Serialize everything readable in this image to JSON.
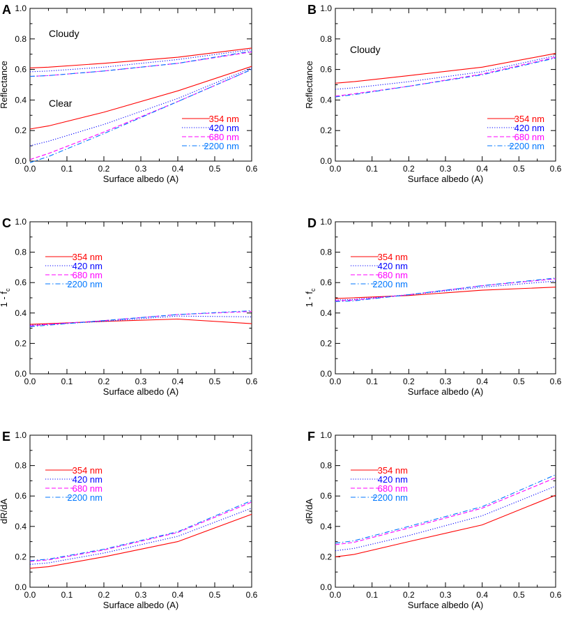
{
  "figure": {
    "legend": [
      {
        "label": "354 nm",
        "color": "#ff0000",
        "dash": "solid"
      },
      {
        "label": "420 nm",
        "color": "#0000ff",
        "dash": "dotted"
      },
      {
        "label": "680 nm",
        "color": "#ff00ff",
        "dash": "dashed"
      },
      {
        "label": "2200 nm",
        "color": "#0077ff",
        "dash": "dashdot"
      }
    ]
  },
  "chart_data": [
    {
      "panel": "A",
      "type": "line",
      "xlabel": "Surface albedo (A)",
      "ylabel": "Reflectance",
      "xlim": [
        0,
        0.6
      ],
      "ylim": [
        0,
        1.0
      ],
      "x_ticks": [
        "0.0",
        "0.1",
        "0.2",
        "0.3",
        "0.4",
        "0.5",
        "0.6"
      ],
      "y_ticks": [
        "0.0",
        "0.2",
        "0.4",
        "0.6",
        "0.8",
        "1.0"
      ],
      "x": [
        0.0,
        0.05,
        0.2,
        0.4,
        0.6
      ],
      "annotations": [
        "Cloudy",
        "Clear"
      ],
      "legend_position": "lower-right",
      "series": [
        {
          "name": "354 nm",
          "group": "Cloudy",
          "values": [
            0.61,
            0.615,
            0.64,
            0.68,
            0.74
          ]
        },
        {
          "name": "420 nm",
          "group": "Cloudy",
          "values": [
            0.585,
            0.59,
            0.615,
            0.665,
            0.73
          ]
        },
        {
          "name": "680 nm",
          "group": "Cloudy",
          "values": [
            0.555,
            0.56,
            0.59,
            0.64,
            0.715
          ]
        },
        {
          "name": "2200 nm",
          "group": "Cloudy",
          "values": [
            0.555,
            0.56,
            0.59,
            0.64,
            0.72
          ]
        },
        {
          "name": "354 nm",
          "group": "Clear",
          "values": [
            0.21,
            0.23,
            0.32,
            0.46,
            0.62
          ]
        },
        {
          "name": "420 nm",
          "group": "Clear",
          "values": [
            0.1,
            0.13,
            0.24,
            0.41,
            0.61
          ]
        },
        {
          "name": "680 nm",
          "group": "Clear",
          "values": [
            0.01,
            0.05,
            0.19,
            0.39,
            0.6
          ]
        },
        {
          "name": "2200 nm",
          "group": "Clear",
          "values": [
            -0.01,
            0.03,
            0.18,
            0.39,
            0.6
          ]
        }
      ]
    },
    {
      "panel": "B",
      "type": "line",
      "xlabel": "Surface albedo (A)",
      "ylabel": "Reflectance",
      "xlim": [
        0,
        0.6
      ],
      "ylim": [
        0,
        1.0
      ],
      "x_ticks": [
        "0.0",
        "0.1",
        "0.2",
        "0.3",
        "0.4",
        "0.5",
        "0.6"
      ],
      "y_ticks": [
        "0.0",
        "0.2",
        "0.4",
        "0.6",
        "0.8",
        "1.0"
      ],
      "x": [
        0.0,
        0.05,
        0.2,
        0.4,
        0.6
      ],
      "annotations": [
        "Cloudy"
      ],
      "legend_position": "lower-right",
      "series": [
        {
          "name": "354 nm",
          "values": [
            0.51,
            0.52,
            0.56,
            0.615,
            0.705
          ]
        },
        {
          "name": "420 nm",
          "values": [
            0.47,
            0.48,
            0.52,
            0.585,
            0.69
          ]
        },
        {
          "name": "680 nm",
          "values": [
            0.425,
            0.44,
            0.49,
            0.57,
            0.68
          ]
        },
        {
          "name": "2200 nm",
          "values": [
            0.42,
            0.435,
            0.49,
            0.565,
            0.675
          ]
        }
      ]
    },
    {
      "panel": "C",
      "type": "line",
      "xlabel": "Surface albedo (A)",
      "ylabel": "1 - fc",
      "xlim": [
        0,
        0.6
      ],
      "ylim": [
        0,
        1.0
      ],
      "x_ticks": [
        "0.0",
        "0.1",
        "0.2",
        "0.3",
        "0.4",
        "0.5",
        "0.6"
      ],
      "y_ticks": [
        "0.0",
        "0.2",
        "0.4",
        "0.6",
        "0.8",
        "1.0"
      ],
      "x": [
        0.0,
        0.05,
        0.2,
        0.4,
        0.6
      ],
      "legend_position": "top-left",
      "series": [
        {
          "name": "354 nm",
          "values": [
            0.325,
            0.33,
            0.345,
            0.36,
            0.33
          ]
        },
        {
          "name": "420 nm",
          "values": [
            0.32,
            0.325,
            0.345,
            0.38,
            0.375
          ]
        },
        {
          "name": "680 nm",
          "values": [
            0.315,
            0.325,
            0.35,
            0.39,
            0.41
          ]
        },
        {
          "name": "2200 nm",
          "values": [
            0.31,
            0.32,
            0.35,
            0.39,
            0.415
          ]
        }
      ]
    },
    {
      "panel": "D",
      "type": "line",
      "xlabel": "Surface albedo (A)",
      "ylabel": "1 - fc",
      "xlim": [
        0,
        0.6
      ],
      "ylim": [
        0,
        1.0
      ],
      "x_ticks": [
        "0.0",
        "0.1",
        "0.2",
        "0.3",
        "0.4",
        "0.5",
        "0.6"
      ],
      "y_ticks": [
        "0.0",
        "0.2",
        "0.4",
        "0.6",
        "0.8",
        "1.0"
      ],
      "x": [
        0.0,
        0.05,
        0.2,
        0.4,
        0.6
      ],
      "legend_position": "top-left",
      "series": [
        {
          "name": "354 nm",
          "values": [
            0.495,
            0.5,
            0.515,
            0.55,
            0.57
          ]
        },
        {
          "name": "420 nm",
          "values": [
            0.485,
            0.49,
            0.52,
            0.57,
            0.61
          ]
        },
        {
          "name": "680 nm",
          "values": [
            0.48,
            0.485,
            0.52,
            0.58,
            0.625
          ]
        },
        {
          "name": "2200 nm",
          "values": [
            0.475,
            0.48,
            0.52,
            0.58,
            0.63
          ]
        }
      ]
    },
    {
      "panel": "E",
      "type": "line",
      "xlabel": "Surface albedo (A)",
      "ylabel": "dR/dA",
      "xlim": [
        0,
        0.6
      ],
      "ylim": [
        0,
        1.0
      ],
      "x_ticks": [
        "0.0",
        "0.1",
        "0.2",
        "0.3",
        "0.4",
        "0.5",
        "0.6"
      ],
      "y_ticks": [
        "0.0",
        "0.2",
        "0.4",
        "0.6",
        "0.8",
        "1.0"
      ],
      "x": [
        0.0,
        0.05,
        0.2,
        0.4,
        0.6
      ],
      "legend_position": "top-left",
      "series": [
        {
          "name": "354 nm",
          "values": [
            0.125,
            0.135,
            0.2,
            0.3,
            0.48
          ]
        },
        {
          "name": "420 nm",
          "values": [
            0.15,
            0.16,
            0.225,
            0.335,
            0.52
          ]
        },
        {
          "name": "680 nm",
          "values": [
            0.17,
            0.18,
            0.245,
            0.36,
            0.56
          ]
        },
        {
          "name": "2200 nm",
          "values": [
            0.175,
            0.185,
            0.25,
            0.365,
            0.57
          ]
        }
      ]
    },
    {
      "panel": "F",
      "type": "line",
      "xlabel": "Surface albedo (A)",
      "ylabel": "dR/dA",
      "xlim": [
        0,
        0.6
      ],
      "ylim": [
        0,
        1.0
      ],
      "x_ticks": [
        "0.0",
        "0.1",
        "0.2",
        "0.3",
        "0.4",
        "0.5",
        "0.6"
      ],
      "y_ticks": [
        "0.0",
        "0.2",
        "0.4",
        "0.6",
        "0.8",
        "1.0"
      ],
      "x": [
        0.0,
        0.05,
        0.2,
        0.4,
        0.6
      ],
      "legend_position": "top-left",
      "series": [
        {
          "name": "354 nm",
          "values": [
            0.2,
            0.215,
            0.3,
            0.41,
            0.605
          ]
        },
        {
          "name": "420 nm",
          "values": [
            0.24,
            0.255,
            0.34,
            0.47,
            0.665
          ]
        },
        {
          "name": "680 nm",
          "values": [
            0.28,
            0.295,
            0.39,
            0.52,
            0.72
          ]
        },
        {
          "name": "2200 nm",
          "values": [
            0.29,
            0.305,
            0.4,
            0.53,
            0.74
          ]
        }
      ]
    }
  ]
}
